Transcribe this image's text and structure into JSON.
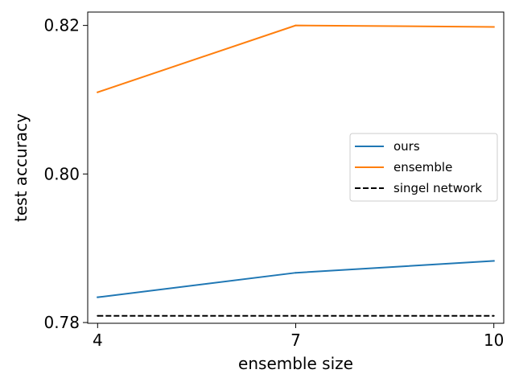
{
  "chart_data": {
    "type": "line",
    "title": "",
    "xlabel": "ensemble size",
    "ylabel": "test accuracy",
    "x": [
      4,
      7,
      10
    ],
    "xticks": [
      "4",
      "7",
      "10"
    ],
    "yticks": [
      "0.78",
      "0.80",
      "0.82"
    ],
    "ytick_values": [
      0.78,
      0.8,
      0.82
    ],
    "xlim": [
      3.85,
      10.15
    ],
    "ylim": [
      0.7799,
      0.8218
    ],
    "grid": false,
    "legend_position": "center-right",
    "series": [
      {
        "name": "ours",
        "values": [
          0.7834,
          0.7867,
          0.7883
        ],
        "color": "#1f77b4",
        "style": "solid"
      },
      {
        "name": "ensemble",
        "values": [
          0.811,
          0.82,
          0.8198
        ],
        "color": "#ff7f0e",
        "style": "solid"
      },
      {
        "name": "singel network",
        "values": [
          0.7809,
          0.7809,
          0.7809
        ],
        "color": "#000000",
        "style": "dashed"
      }
    ]
  }
}
